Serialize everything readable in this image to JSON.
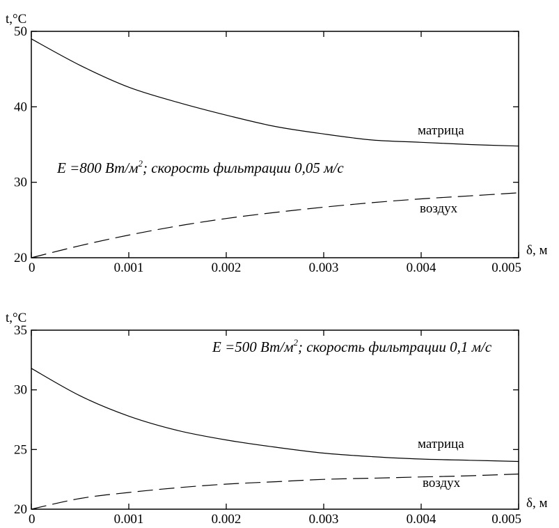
{
  "chart_data": [
    {
      "type": "line",
      "ylabel": "t,°C",
      "xlabel": "δ, м",
      "xlim": [
        0,
        0.005
      ],
      "ylim": [
        20,
        50
      ],
      "xticks": [
        "0",
        "0.001",
        "0.002",
        "0.003",
        "0.004",
        "0.005"
      ],
      "yticks": [
        "20",
        "30",
        "40",
        "50"
      ],
      "grid": false,
      "annotation": {
        "main": "E =800 Вт/м",
        "sup": "2",
        "rest": "; скорость фильтрации 0,05 м/с"
      },
      "series": [
        {
          "name": "матрица",
          "style": "solid",
          "x": [
            0,
            0.0005,
            0.001,
            0.0015,
            0.002,
            0.0025,
            0.003,
            0.0035,
            0.004,
            0.0045,
            0.005
          ],
          "y": [
            49.0,
            45.5,
            42.6,
            40.6,
            38.9,
            37.4,
            36.4,
            35.6,
            35.3,
            35.0,
            34.8
          ]
        },
        {
          "name": "воздух",
          "style": "dashed",
          "x": [
            0,
            0.0005,
            0.001,
            0.0015,
            0.002,
            0.0025,
            0.003,
            0.0035,
            0.004,
            0.0045,
            0.005
          ],
          "y": [
            20.0,
            21.6,
            23.0,
            24.2,
            25.2,
            26.0,
            26.7,
            27.3,
            27.8,
            28.2,
            28.6
          ]
        }
      ]
    },
    {
      "type": "line",
      "ylabel": "t,°C",
      "xlabel": "δ, м",
      "xlim": [
        0,
        0.005
      ],
      "ylim": [
        20,
        35
      ],
      "xticks": [
        "0",
        "0.001",
        "0.002",
        "0.003",
        "0.004",
        "0.005"
      ],
      "yticks": [
        "20",
        "25",
        "30",
        "35"
      ],
      "grid": false,
      "annotation": {
        "main": "E =500 Вт/м",
        "sup": "2",
        "rest": "; скорость фильтрации 0,1 м/с"
      },
      "series": [
        {
          "name": "матрица",
          "style": "solid",
          "x": [
            0,
            0.0005,
            0.001,
            0.0015,
            0.002,
            0.0025,
            0.003,
            0.0035,
            0.004,
            0.0045,
            0.005
          ],
          "y": [
            31.8,
            29.5,
            27.8,
            26.6,
            25.8,
            25.2,
            24.7,
            24.4,
            24.2,
            24.1,
            24.0
          ]
        },
        {
          "name": "воздух",
          "style": "dashed",
          "x": [
            0,
            0.0005,
            0.001,
            0.0015,
            0.002,
            0.0025,
            0.003,
            0.0035,
            0.004,
            0.0045,
            0.005
          ],
          "y": [
            20.0,
            20.9,
            21.4,
            21.8,
            22.1,
            22.3,
            22.5,
            22.6,
            22.7,
            22.8,
            22.95
          ]
        }
      ]
    }
  ]
}
